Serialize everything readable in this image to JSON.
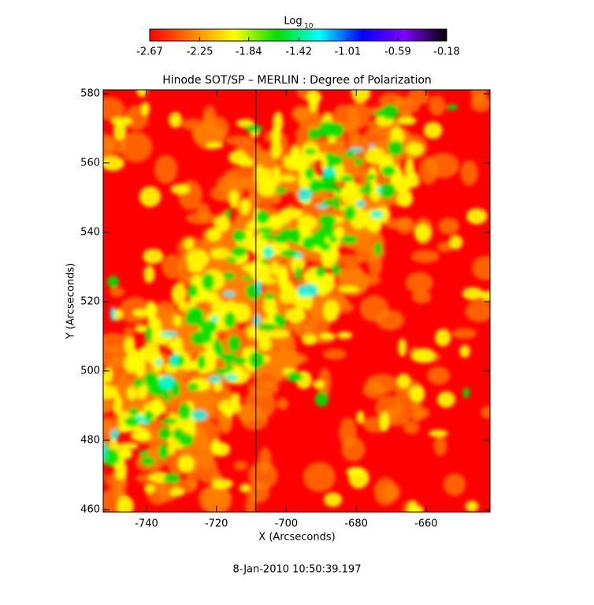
{
  "chart_data": {
    "type": "heatmap",
    "title": "Hinode SOT/SP – MERLIN : Degree of Polarization",
    "x_label": "X (Arcseconds)",
    "y_label": "Y (Arcseconds)",
    "footer": "8-Jan-2010 10:50:39.197",
    "colorbar": {
      "title": "Log",
      "title_subscript": "10",
      "lim": [
        -2.67,
        -0.18
      ],
      "ticks": [
        -2.67,
        -2.25,
        -1.84,
        -1.42,
        -1.01,
        -0.59,
        -0.18
      ],
      "colors": [
        "#ff0000",
        "#ff8000",
        "#ffff00",
        "#00e000",
        "#00ffff",
        "#0000ff",
        "#8000ff",
        "#000000"
      ]
    },
    "xlim": [
      -752.4,
      -641.7
    ],
    "xticks": [
      -740,
      -720,
      -700,
      -680,
      -660
    ],
    "ylim": [
      459.3,
      581.1
    ],
    "yticks": [
      460,
      480,
      500,
      520,
      540,
      560,
      580
    ],
    "vertical_line": -708.7
  }
}
